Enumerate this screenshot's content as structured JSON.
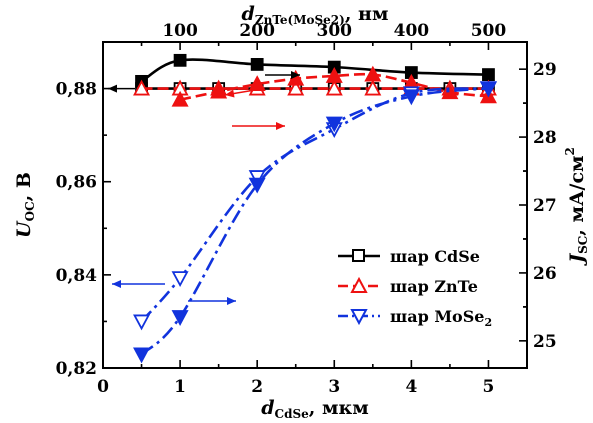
{
  "chart_data": {
    "type": "line",
    "xlabel": {
      "main": "d",
      "sub": "CdSe",
      "unit": ", мкм"
    },
    "x2label": {
      "main": "d",
      "sub": "ZnTe(MoSe2)",
      "unit": ", нм"
    },
    "ylabel": {
      "main": "U",
      "sub": "OC",
      "unit": ", В"
    },
    "y2label": {
      "main": "J",
      "sub": "SC",
      "unit": ", мА/см",
      "sup": "2"
    },
    "xlim": [
      0,
      5.5
    ],
    "x2lim": [
      0,
      550
    ],
    "ylim": [
      0.82,
      0.89
    ],
    "y2lim": [
      24.6,
      29.4
    ],
    "x_ticks": [
      "0",
      "1",
      "2",
      "3",
      "4",
      "5"
    ],
    "x2_ticks": [
      "100",
      "200",
      "300",
      "400",
      "500"
    ],
    "y_ticks": [
      "0,82",
      "0,84",
      "0,86",
      "0,88"
    ],
    "y2_ticks": [
      "25",
      "26",
      "27",
      "28",
      "29"
    ],
    "legend_position": "right",
    "series": [
      {
        "name": "шар CdSe",
        "color": "#000000",
        "line": "solid",
        "x_axis": "bottom",
        "open": {
          "axis": "left",
          "x": [
            0.5,
            1.0,
            1.5,
            2.0,
            2.5,
            3.0,
            3.5,
            4.0,
            4.5,
            5.0
          ],
          "y": [
            0.88,
            0.88,
            0.88,
            0.88,
            0.88,
            0.88,
            0.88,
            0.88,
            0.88,
            0.88
          ]
        },
        "filled": {
          "axis": "right",
          "x": [
            0.5,
            1.0,
            2.0,
            3.0,
            4.0,
            5.0
          ],
          "y": [
            28.82,
            29.13,
            29.07,
            29.03,
            28.95,
            28.92
          ]
        }
      },
      {
        "name": "шар ZnTe",
        "color": "#ee1111",
        "line": "dash",
        "x_axis": "top",
        "open": {
          "axis": "left",
          "x": [
            50,
            100,
            150,
            200,
            250,
            300,
            350,
            400,
            450,
            500
          ],
          "y": [
            0.88,
            0.88,
            0.88,
            0.88,
            0.88,
            0.88,
            0.88,
            0.88,
            0.88,
            0.88
          ]
        },
        "filled": {
          "axis": "right",
          "x": [
            100,
            150,
            200,
            250,
            300,
            350,
            400,
            450,
            500
          ],
          "y": [
            28.55,
            28.67,
            28.78,
            28.86,
            28.9,
            28.92,
            28.8,
            28.66,
            28.6
          ]
        }
      },
      {
        "name": "шар MoSe",
        "name_sub": "2",
        "color": "#1133dd",
        "line": "dashdot",
        "x_axis": "top",
        "open": {
          "axis": "left",
          "x": [
            50,
            100,
            200,
            300,
            400,
            500
          ],
          "y": [
            0.83,
            0.8393,
            0.861,
            0.8713,
            0.879,
            0.88
          ]
        },
        "filled": {
          "axis": "right",
          "x": [
            50,
            100,
            200,
            300,
            400,
            500
          ],
          "y": [
            24.8,
            25.35,
            27.3,
            28.2,
            28.6,
            28.72
          ]
        }
      }
    ]
  }
}
